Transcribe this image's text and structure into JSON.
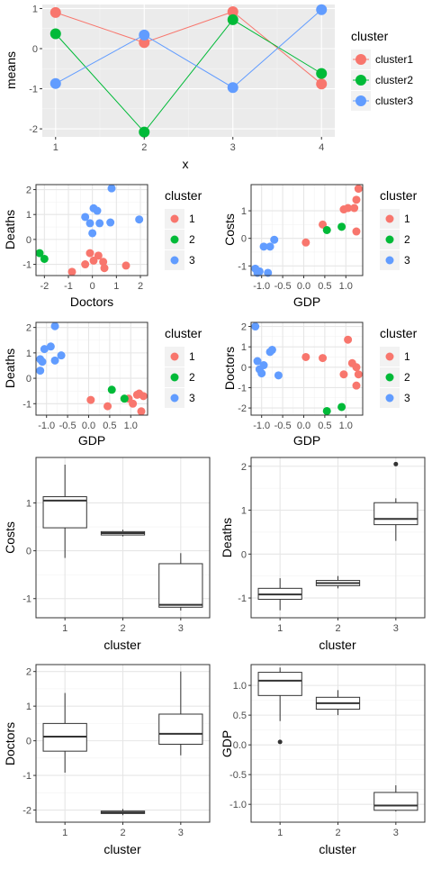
{
  "palette": {
    "1": "#F8766D",
    "2": "#00BA38",
    "3": "#619CFF"
  },
  "chart_data": [
    {
      "id": "means",
      "type": "line",
      "xlabel": "x",
      "ylabel": "means",
      "xlim": [
        0.85,
        4.15
      ],
      "ylim": [
        -2.2,
        1.1
      ],
      "xticks": [
        1,
        2,
        3,
        4
      ],
      "yticks": [
        -2,
        -1,
        0,
        1
      ],
      "grid": true,
      "legend": {
        "title": "cluster",
        "position": "right",
        "entries": [
          "cluster1",
          "cluster2",
          "cluster3"
        ]
      },
      "x": [
        1,
        2,
        3,
        4
      ],
      "series": [
        {
          "name": "cluster1",
          "key": "1",
          "values": [
            0.9,
            0.15,
            0.92,
            -0.88
          ]
        },
        {
          "name": "cluster2",
          "key": "2",
          "values": [
            0.37,
            -2.08,
            0.72,
            -0.62
          ]
        },
        {
          "name": "cluster3",
          "key": "3",
          "values": [
            -0.87,
            0.34,
            -0.97,
            0.97
          ]
        }
      ]
    },
    {
      "id": "doctors-deaths",
      "type": "scatter",
      "xlabel": "Doctors",
      "ylabel": "Deaths",
      "xlim": [
        -2.35,
        2.3
      ],
      "ylim": [
        -1.45,
        2.2
      ],
      "xticks": [
        -2,
        -1,
        0,
        1,
        2
      ],
      "yticks": [
        -1,
        0,
        1,
        2
      ],
      "grid": true,
      "legend": {
        "title": "cluster",
        "position": "right",
        "entries": [
          "1",
          "2",
          "3"
        ]
      },
      "points": [
        {
          "x": -0.85,
          "y": -1.3,
          "c": "1"
        },
        {
          "x": -0.3,
          "y": -1.0,
          "c": "1"
        },
        {
          "x": -0.1,
          "y": -0.55,
          "c": "1"
        },
        {
          "x": 0.05,
          "y": -0.85,
          "c": "1"
        },
        {
          "x": 0.25,
          "y": -0.65,
          "c": "1"
        },
        {
          "x": 0.45,
          "y": -0.9,
          "c": "1"
        },
        {
          "x": 0.5,
          "y": -1.15,
          "c": "1"
        },
        {
          "x": 1.4,
          "y": -1.05,
          "c": "1"
        },
        {
          "x": -2.2,
          "y": -0.55,
          "c": "2"
        },
        {
          "x": -2.0,
          "y": -0.78,
          "c": "2"
        },
        {
          "x": -0.3,
          "y": 0.9,
          "c": "3"
        },
        {
          "x": -0.1,
          "y": 0.65,
          "c": "3"
        },
        {
          "x": 0.0,
          "y": 0.25,
          "c": "3"
        },
        {
          "x": 0.05,
          "y": 1.25,
          "c": "3"
        },
        {
          "x": 0.2,
          "y": 1.15,
          "c": "3"
        },
        {
          "x": 0.3,
          "y": 0.65,
          "c": "3"
        },
        {
          "x": 0.75,
          "y": 0.68,
          "c": "3"
        },
        {
          "x": 0.8,
          "y": 2.05,
          "c": "3"
        },
        {
          "x": 1.95,
          "y": 0.8,
          "c": "3"
        }
      ]
    },
    {
      "id": "gdp-costs",
      "type": "scatter",
      "xlabel": "GDP",
      "ylabel": "Costs",
      "xlim": [
        -1.25,
        1.4
      ],
      "ylim": [
        -1.35,
        1.95
      ],
      "xticks": [
        -1.0,
        -0.5,
        0.0,
        0.5,
        1.0
      ],
      "xticklabels": [
        "-1.0",
        "-0.5",
        "0.0",
        "0.5",
        "1.0"
      ],
      "yticks": [
        -1,
        0,
        1
      ],
      "grid": true,
      "legend": {
        "title": "cluster",
        "position": "right",
        "entries": [
          "1",
          "2",
          "3"
        ]
      },
      "points": [
        {
          "x": 0.05,
          "y": -0.15,
          "c": "1"
        },
        {
          "x": 0.45,
          "y": 0.5,
          "c": "1"
        },
        {
          "x": 0.95,
          "y": 1.05,
          "c": "1"
        },
        {
          "x": 1.05,
          "y": 1.1,
          "c": "1"
        },
        {
          "x": 1.2,
          "y": 1.1,
          "c": "1"
        },
        {
          "x": 1.25,
          "y": 0.25,
          "c": "1"
        },
        {
          "x": 1.25,
          "y": 1.4,
          "c": "1"
        },
        {
          "x": 1.3,
          "y": 1.8,
          "c": "1"
        },
        {
          "x": 0.55,
          "y": 0.3,
          "c": "2"
        },
        {
          "x": 0.9,
          "y": 0.42,
          "c": "2"
        },
        {
          "x": -1.15,
          "y": -1.1,
          "c": "3"
        },
        {
          "x": -1.1,
          "y": -1.25,
          "c": "3"
        },
        {
          "x": -1.05,
          "y": -1.2,
          "c": "3"
        },
        {
          "x": -0.95,
          "y": -0.3,
          "c": "3"
        },
        {
          "x": -0.85,
          "y": -1.25,
          "c": "3"
        },
        {
          "x": -0.8,
          "y": -0.3,
          "c": "3"
        },
        {
          "x": -0.7,
          "y": -0.05,
          "c": "3"
        }
      ]
    },
    {
      "id": "gdp-deaths",
      "type": "scatter",
      "xlabel": "GDP",
      "ylabel": "Deaths",
      "xlim": [
        -1.25,
        1.4
      ],
      "ylim": [
        -1.45,
        2.2
      ],
      "xticks": [
        -1.0,
        -0.5,
        0.0,
        0.5,
        1.0
      ],
      "xticklabels": [
        "-1.0",
        "-0.5",
        "0.0",
        "0.5",
        "1.0"
      ],
      "yticks": [
        -1,
        0,
        1,
        2
      ],
      "grid": true,
      "legend": {
        "title": "cluster",
        "position": "right",
        "entries": [
          "1",
          "2",
          "3"
        ]
      },
      "points": [
        {
          "x": 0.05,
          "y": -0.85,
          "c": "1"
        },
        {
          "x": 0.45,
          "y": -1.1,
          "c": "1"
        },
        {
          "x": 0.95,
          "y": -0.8,
          "c": "1"
        },
        {
          "x": 1.05,
          "y": -1.0,
          "c": "1"
        },
        {
          "x": 1.15,
          "y": -0.65,
          "c": "1"
        },
        {
          "x": 1.2,
          "y": -0.6,
          "c": "1"
        },
        {
          "x": 1.25,
          "y": -1.3,
          "c": "1"
        },
        {
          "x": 1.3,
          "y": -0.7,
          "c": "1"
        },
        {
          "x": 0.55,
          "y": -0.45,
          "c": "2"
        },
        {
          "x": 0.85,
          "y": -0.8,
          "c": "2"
        },
        {
          "x": -1.15,
          "y": 0.3,
          "c": "3"
        },
        {
          "x": -1.15,
          "y": 0.75,
          "c": "3"
        },
        {
          "x": -1.1,
          "y": 0.65,
          "c": "3"
        },
        {
          "x": -1.05,
          "y": 1.15,
          "c": "3"
        },
        {
          "x": -0.9,
          "y": 1.25,
          "c": "3"
        },
        {
          "x": -0.8,
          "y": 0.7,
          "c": "3"
        },
        {
          "x": -0.8,
          "y": 2.05,
          "c": "3"
        },
        {
          "x": -0.65,
          "y": 0.9,
          "c": "3"
        }
      ]
    },
    {
      "id": "gdp-doctors",
      "type": "scatter",
      "xlabel": "GDP",
      "ylabel": "Doctors",
      "xlim": [
        -1.25,
        1.4
      ],
      "ylim": [
        -2.35,
        2.2
      ],
      "xticks": [
        -1.0,
        -0.5,
        0.0,
        0.5,
        1.0
      ],
      "xticklabels": [
        "-1.0",
        "-0.5",
        "0.0",
        "0.5",
        "1.0"
      ],
      "yticks": [
        -2,
        -1,
        0,
        1,
        2
      ],
      "grid": true,
      "legend": {
        "title": "cluster",
        "position": "right",
        "entries": [
          "1",
          "2",
          "3"
        ]
      },
      "points": [
        {
          "x": 0.05,
          "y": 0.5,
          "c": "1"
        },
        {
          "x": 0.45,
          "y": 0.45,
          "c": "1"
        },
        {
          "x": 0.95,
          "y": -0.35,
          "c": "1"
        },
        {
          "x": 1.05,
          "y": 1.35,
          "c": "1"
        },
        {
          "x": 1.15,
          "y": 0.2,
          "c": "1"
        },
        {
          "x": 1.25,
          "y": 0.0,
          "c": "1"
        },
        {
          "x": 1.25,
          "y": -0.9,
          "c": "1"
        },
        {
          "x": 1.3,
          "y": -0.35,
          "c": "1"
        },
        {
          "x": 0.55,
          "y": -2.15,
          "c": "2"
        },
        {
          "x": 0.9,
          "y": -1.95,
          "c": "2"
        },
        {
          "x": -1.15,
          "y": 2.0,
          "c": "3"
        },
        {
          "x": -1.1,
          "y": 0.3,
          "c": "3"
        },
        {
          "x": -1.05,
          "y": -0.1,
          "c": "3"
        },
        {
          "x": -1.0,
          "y": -0.3,
          "c": "3"
        },
        {
          "x": -0.95,
          "y": 0.1,
          "c": "3"
        },
        {
          "x": -0.8,
          "y": 0.75,
          "c": "3"
        },
        {
          "x": -0.75,
          "y": 0.85,
          "c": "3"
        },
        {
          "x": -0.6,
          "y": -0.4,
          "c": "3"
        }
      ]
    },
    {
      "id": "box-costs",
      "type": "box",
      "xlabel": "cluster",
      "ylabel": "Costs",
      "categories": [
        "1",
        "2",
        "3"
      ],
      "ylim": [
        -1.4,
        1.95
      ],
      "yticks": [
        -1,
        0,
        1
      ],
      "grid": true,
      "boxes": [
        {
          "min": -0.15,
          "q1": 0.48,
          "med": 1.05,
          "q3": 1.13,
          "max": 1.8,
          "outliers": []
        },
        {
          "min": 0.3,
          "q1": 0.33,
          "med": 0.37,
          "q3": 0.4,
          "max": 0.44,
          "outliers": []
        },
        {
          "min": -1.25,
          "q1": -1.18,
          "med": -1.13,
          "q3": -0.27,
          "max": -0.05,
          "outliers": []
        }
      ]
    },
    {
      "id": "box-deaths",
      "type": "box",
      "xlabel": "cluster",
      "ylabel": "Deaths",
      "categories": [
        "1",
        "2",
        "3"
      ],
      "ylim": [
        -1.45,
        2.2
      ],
      "yticks": [
        -1,
        0,
        1,
        2
      ],
      "grid": true,
      "boxes": [
        {
          "min": -1.28,
          "q1": -1.03,
          "med": -0.92,
          "q3": -0.78,
          "max": -0.55,
          "outliers": []
        },
        {
          "min": -0.78,
          "q1": -0.72,
          "med": -0.66,
          "q3": -0.6,
          "max": -0.5,
          "outliers": []
        },
        {
          "min": 0.3,
          "q1": 0.67,
          "med": 0.8,
          "q3": 1.17,
          "max": 1.27,
          "outliers": [
            2.05
          ]
        }
      ]
    },
    {
      "id": "box-doctors",
      "type": "box",
      "xlabel": "cluster",
      "ylabel": "Doctors",
      "categories": [
        "1",
        "2",
        "3"
      ],
      "ylim": [
        -2.35,
        2.2
      ],
      "yticks": [
        -2,
        -1,
        0,
        1,
        2
      ],
      "grid": true,
      "boxes": [
        {
          "min": -0.92,
          "q1": -0.3,
          "med": 0.12,
          "q3": 0.5,
          "max": 1.38,
          "outliers": []
        },
        {
          "min": -2.15,
          "q1": -2.1,
          "med": -2.07,
          "q3": -2.03,
          "max": -1.97,
          "outliers": []
        },
        {
          "min": -0.42,
          "q1": -0.1,
          "med": 0.2,
          "q3": 0.77,
          "max": 2.0,
          "outliers": []
        }
      ]
    },
    {
      "id": "box-gdp",
      "type": "box",
      "xlabel": "cluster",
      "ylabel": "GDP",
      "categories": [
        "1",
        "2",
        "3"
      ],
      "ylim": [
        -1.3,
        1.35
      ],
      "yticks": [
        -1.0,
        -0.5,
        0.0,
        0.5,
        1.0
      ],
      "yticklabels": [
        "-1.0",
        "-0.5",
        "0.0",
        "0.5",
        "1.0"
      ],
      "grid": true,
      "boxes": [
        {
          "min": 0.4,
          "q1": 0.83,
          "med": 1.08,
          "q3": 1.22,
          "max": 1.3,
          "outliers": [
            0.05
          ]
        },
        {
          "min": 0.5,
          "q1": 0.6,
          "med": 0.7,
          "q3": 0.8,
          "max": 0.92,
          "outliers": []
        },
        {
          "min": -1.12,
          "q1": -1.1,
          "med": -1.02,
          "q3": -0.8,
          "max": -0.68,
          "outliers": []
        }
      ]
    }
  ]
}
